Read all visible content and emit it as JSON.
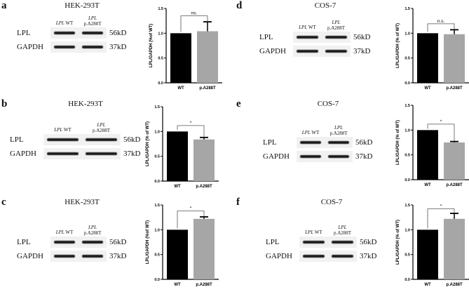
{
  "figure": {
    "panels": [
      {
        "letter": "a",
        "cell_line": "HEK-293T",
        "lanes": [
          {
            "gene": "LPL",
            "label": "WT"
          },
          {
            "gene": "LPL",
            "label": "p.A288T"
          }
        ],
        "rows": [
          {
            "name": "LPL",
            "kd": "56kD"
          },
          {
            "name": "GAPDH",
            "kd": "37kD"
          }
        ],
        "ylabel": "LPL/GAPDH (%of WT)"
      },
      {
        "letter": "b",
        "cell_line": "HEK-293T",
        "lanes": [
          {
            "gene": "LPL",
            "label": "WT"
          },
          {
            "gene": "LPL",
            "label": "p.A288T"
          }
        ],
        "rows": [
          {
            "name": "LPL",
            "kd": "56kD"
          },
          {
            "name": "GAPDH",
            "kd": "37kD"
          }
        ],
        "ylabel": "LPL/GAPDH (% of WT)"
      },
      {
        "letter": "c",
        "cell_line": "HEK-293T",
        "lanes": [
          {
            "gene": "LPL",
            "label": "WT"
          },
          {
            "gene": "LPL",
            "label": "p.A288T"
          }
        ],
        "rows": [
          {
            "name": "LPL",
            "kd": "56kD"
          },
          {
            "name": "GAPDH",
            "kd": "37kD"
          }
        ],
        "ylabel": "LPL/GAPDH (%of WT)"
      },
      {
        "letter": "d",
        "cell_line": "COS-7",
        "lanes": [
          {
            "gene": "LPL",
            "label": "WT"
          },
          {
            "gene": "LPL",
            "label": "p.A288T"
          }
        ],
        "rows": [
          {
            "name": "LPL",
            "kd": "56kD"
          },
          {
            "name": "GAPDH",
            "kd": "37kD"
          }
        ],
        "ylabel": "LPL/GAPDH (% of WT)"
      },
      {
        "letter": "e",
        "cell_line": "COS-7",
        "lanes": [
          {
            "gene": "LPL",
            "label": "WT"
          },
          {
            "gene": "LPL",
            "label": "p.A288T"
          }
        ],
        "rows": [
          {
            "name": "LPL",
            "kd": "56kD"
          },
          {
            "name": "GAPDH",
            "kd": "37kD"
          }
        ],
        "ylabel": "LPL/GAPDH (% of WT)"
      },
      {
        "letter": "f",
        "cell_line": "COS-7",
        "lanes": [
          {
            "gene": "LPL",
            "label": "WT"
          },
          {
            "gene": "LPL",
            "label": "p.A288T"
          }
        ],
        "rows": [
          {
            "name": "LPL",
            "kd": "56kD"
          },
          {
            "name": "GAPDH",
            "kd": "37kD"
          }
        ],
        "ylabel": "LPL/GAPDH (% of WT)"
      }
    ]
  },
  "chart_data": [
    {
      "panel": "a",
      "type": "bar",
      "title": "HEK-293T",
      "categories": [
        "WT",
        "p.A288T"
      ],
      "values": [
        1.0,
        1.04
      ],
      "errors": [
        0,
        0.19
      ],
      "colors": [
        "#000000",
        "#a6a6a6"
      ],
      "significance": "ns.",
      "xlabel": "",
      "ylabel": "LPL/GAPDH (%of WT)",
      "ylim": [
        0,
        1.5
      ],
      "yticks": [
        "0.0",
        "0.5",
        "1.0",
        "1.5"
      ]
    },
    {
      "panel": "b",
      "type": "bar",
      "title": "HEK-293T",
      "categories": [
        "WT",
        "p.A288T"
      ],
      "values": [
        1.0,
        0.84
      ],
      "errors": [
        0,
        0.04
      ],
      "colors": [
        "#000000",
        "#a6a6a6"
      ],
      "significance": "*",
      "xlabel": "",
      "ylabel": "LPL/GAPDH (% of WT)",
      "ylim": [
        0,
        1.5
      ],
      "yticks": [
        "0.0",
        "0.5",
        "1.0",
        "1.5"
      ]
    },
    {
      "panel": "c",
      "type": "bar",
      "title": "HEK-293T",
      "categories": [
        "WT",
        "p.A288T"
      ],
      "values": [
        1.0,
        1.22
      ],
      "errors": [
        0,
        0.04
      ],
      "colors": [
        "#000000",
        "#a6a6a6"
      ],
      "significance": "*",
      "xlabel": "",
      "ylabel": "LPL/GAPDH (%of WT)",
      "ylim": [
        0,
        1.5
      ],
      "yticks": [
        "0.0",
        "0.5",
        "1.0",
        "1.5"
      ]
    },
    {
      "panel": "d",
      "type": "bar",
      "title": "COS-7",
      "categories": [
        "WT",
        "p.A288T"
      ],
      "values": [
        1.0,
        0.98
      ],
      "errors": [
        0,
        0.09
      ],
      "colors": [
        "#000000",
        "#a6a6a6"
      ],
      "significance": "n.s.",
      "xlabel": "",
      "ylabel": "LPL/GAPDH (% of WT)",
      "ylim": [
        0,
        1.5
      ],
      "yticks": [
        "0.0",
        "0.5",
        "1.0",
        "1.5"
      ]
    },
    {
      "panel": "e",
      "type": "bar",
      "title": "COS-7",
      "categories": [
        "WT",
        "p.A288T"
      ],
      "values": [
        1.0,
        0.75
      ],
      "errors": [
        0,
        0.02
      ],
      "colors": [
        "#000000",
        "#a6a6a6"
      ],
      "significance": "*",
      "xlabel": "",
      "ylabel": "LPL/GAPDH (% of WT)",
      "ylim": [
        0,
        1.5
      ],
      "yticks": [
        "0.0",
        "0.5",
        "1.0",
        "1.5"
      ]
    },
    {
      "panel": "f",
      "type": "bar",
      "title": "COS-7",
      "categories": [
        "WT",
        "p.A288T"
      ],
      "values": [
        1.0,
        1.22
      ],
      "errors": [
        0,
        0.11
      ],
      "colors": [
        "#000000",
        "#a6a6a6"
      ],
      "significance": "*",
      "xlabel": "",
      "ylabel": "LPL/GAPDH (% of WT)",
      "ylim": [
        0,
        1.5
      ],
      "yticks": [
        "0.0",
        "0.5",
        "1.0",
        "1.5"
      ]
    }
  ]
}
